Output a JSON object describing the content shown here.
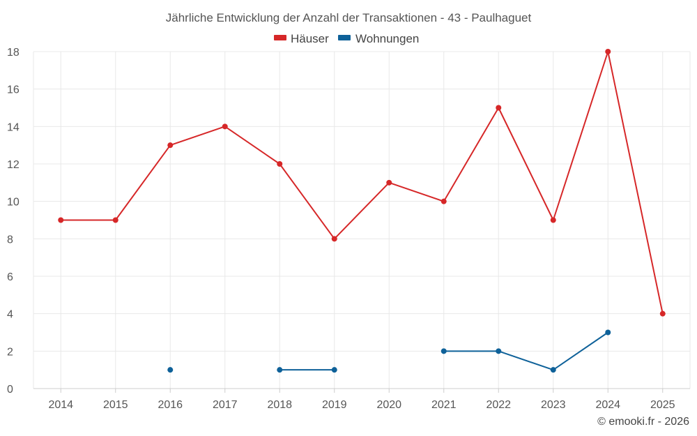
{
  "chart_data": {
    "type": "line",
    "title": "Jährliche Entwicklung der Anzahl der Transaktionen - 43 - Paulhaguet",
    "categories": [
      "2014",
      "2015",
      "2016",
      "2017",
      "2018",
      "2019",
      "2020",
      "2021",
      "2022",
      "2023",
      "2024",
      "2025"
    ],
    "ylim": [
      0,
      18
    ],
    "yticks": [
      0,
      2,
      4,
      6,
      8,
      10,
      12,
      14,
      16,
      18
    ],
    "grid": true,
    "legend_position": "top-center",
    "series": [
      {
        "name": "Häuser",
        "color": "#d62728",
        "values": [
          9,
          9,
          13,
          14,
          12,
          8,
          11,
          10,
          15,
          9,
          18,
          4
        ]
      },
      {
        "name": "Wohnungen",
        "color": "#0e6199",
        "values": [
          null,
          null,
          1,
          null,
          1,
          1,
          null,
          2,
          2,
          1,
          3,
          null
        ]
      }
    ]
  },
  "credit": "© emooki.fr - 2026"
}
